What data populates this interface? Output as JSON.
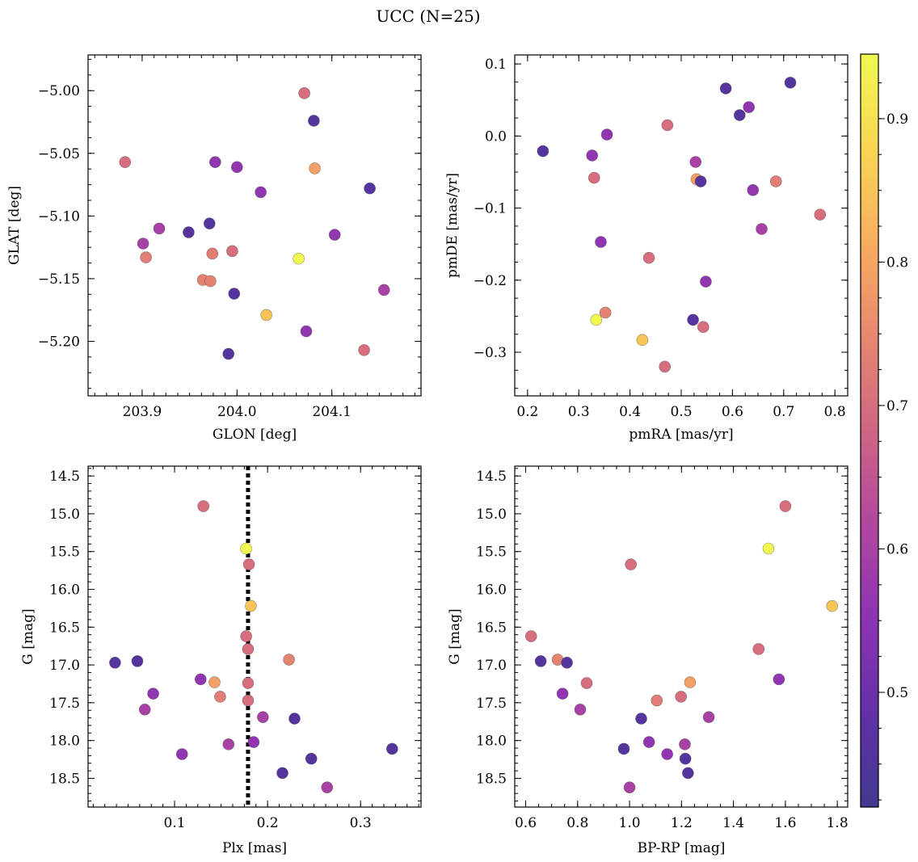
{
  "figure": {
    "title": "UCC (N=25)"
  },
  "colormap": {
    "name": "plasma",
    "stops": [
      "#41398f",
      "#6330a8",
      "#8c33b3",
      "#b1479f",
      "#cf6583",
      "#e8876f",
      "#f7ae5f",
      "#f8d653",
      "#f1f852"
    ],
    "range": [
      0.42,
      0.945
    ],
    "ticks": [
      0.5,
      0.6,
      0.7,
      0.8,
      0.9
    ],
    "tick_labels": [
      "0.5",
      "0.6",
      "0.7",
      "0.8",
      "0.9"
    ]
  },
  "chart_data": [
    {
      "type": "scatter",
      "id": "glon-glat",
      "xlabel": "GLON [deg]",
      "ylabel": "GLAT [deg]",
      "xlim": [
        203.843,
        204.194
      ],
      "ylim": [
        -5.2435,
        -4.9715
      ],
      "xticks": [
        203.9,
        204.0,
        204.1
      ],
      "xtick_labels": [
        "203.9",
        "204.0",
        "204.1"
      ],
      "yticks": [
        -5.2,
        -5.15,
        -5.1,
        -5.05,
        -5.0
      ],
      "ytick_labels": [
        "−5.20",
        "−5.15",
        "−5.10",
        "−5.05",
        "−5.00"
      ],
      "x": [
        204.071,
        204.081,
        203.882,
        203.977,
        204.0,
        204.082,
        204.025,
        204.14,
        203.971,
        203.918,
        203.949,
        204.103,
        203.901,
        203.904,
        203.974,
        203.995,
        204.065,
        203.964,
        203.972,
        203.997,
        204.155,
        204.031,
        204.073,
        204.134,
        203.991
      ],
      "y": [
        -5.002,
        -5.024,
        -5.057,
        -5.057,
        -5.061,
        -5.062,
        -5.081,
        -5.078,
        -5.106,
        -5.11,
        -5.113,
        -5.115,
        -5.122,
        -5.133,
        -5.13,
        -5.128,
        -5.134,
        -5.151,
        -5.152,
        -5.162,
        -5.159,
        -5.179,
        -5.192,
        -5.207,
        -5.21
      ],
      "c": [
        0.7,
        0.46,
        0.7,
        0.56,
        0.56,
        0.79,
        0.56,
        0.46,
        0.46,
        0.6,
        0.46,
        0.56,
        0.6,
        0.73,
        0.73,
        0.7,
        0.945,
        0.74,
        0.74,
        0.46,
        0.6,
        0.85,
        0.56,
        0.7,
        0.46
      ]
    },
    {
      "type": "scatter",
      "id": "pmra-pmde",
      "xlabel": "pmRA [mas/yr]",
      "ylabel": "pmDE [mas/yr]",
      "xlim": [
        0.175,
        0.825
      ],
      "ylim": [
        -0.3605,
        0.1125
      ],
      "xticks": [
        0.2,
        0.3,
        0.4,
        0.5,
        0.6,
        0.7,
        0.8
      ],
      "xtick_labels": [
        "0.2",
        "0.3",
        "0.4",
        "0.5",
        "0.6",
        "0.7",
        "0.8"
      ],
      "yticks": [
        -0.3,
        -0.2,
        -0.1,
        0.0,
        0.1
      ],
      "ytick_labels": [
        "−0.3",
        "−0.2",
        "−0.1",
        "0.0",
        "0.1"
      ],
      "x": [
        0.713,
        0.587,
        0.632,
        0.614,
        0.473,
        0.355,
        0.23,
        0.326,
        0.528,
        0.33,
        0.53,
        0.538,
        0.685,
        0.64,
        0.771,
        0.657,
        0.437,
        0.343,
        0.548,
        0.352,
        0.334,
        0.523,
        0.424,
        0.543,
        0.468
      ],
      "y": [
        0.074,
        0.066,
        0.04,
        0.029,
        0.015,
        0.002,
        -0.021,
        -0.027,
        -0.036,
        -0.058,
        -0.06,
        -0.063,
        -0.063,
        -0.075,
        -0.109,
        -0.129,
        -0.169,
        -0.147,
        -0.202,
        -0.245,
        -0.255,
        -0.255,
        -0.283,
        -0.265,
        -0.32
      ],
      "c": [
        0.46,
        0.46,
        0.56,
        0.46,
        0.7,
        0.56,
        0.46,
        0.56,
        0.6,
        0.7,
        0.79,
        0.46,
        0.73,
        0.56,
        0.7,
        0.6,
        0.7,
        0.56,
        0.56,
        0.74,
        0.945,
        0.46,
        0.85,
        0.7,
        0.7
      ]
    },
    {
      "type": "scatter",
      "id": "plx-g",
      "xlabel": "Plx [mas]",
      "ylabel": "G [mag]",
      "xlim": [
        0.007,
        0.365
      ],
      "ylim": [
        18.88,
        14.37
      ],
      "inverted_y": true,
      "xticks": [
        0.1,
        0.2,
        0.3
      ],
      "xtick_labels": [
        "0.1",
        "0.2",
        "0.3"
      ],
      "yticks": [
        14.5,
        15.0,
        15.5,
        16.0,
        16.5,
        17.0,
        17.5,
        18.0,
        18.5
      ],
      "ytick_labels": [
        "14.5",
        "15.0",
        "15.5",
        "16.0",
        "16.5",
        "17.0",
        "17.5",
        "18.0",
        "18.5"
      ],
      "vline": 0.179,
      "x": [
        0.131,
        0.177,
        0.18,
        0.182,
        0.177,
        0.179,
        0.223,
        0.06,
        0.036,
        0.179,
        0.128,
        0.143,
        0.077,
        0.149,
        0.179,
        0.068,
        0.195,
        0.229,
        0.185,
        0.158,
        0.108,
        0.247,
        0.216,
        0.334,
        0.264
      ],
      "y": [
        14.9,
        15.46,
        15.67,
        16.22,
        16.62,
        16.79,
        16.93,
        16.95,
        16.97,
        17.24,
        17.19,
        17.23,
        17.38,
        17.42,
        17.47,
        17.59,
        17.69,
        17.71,
        18.02,
        18.05,
        18.18,
        18.24,
        18.43,
        18.11,
        18.62
      ],
      "c": [
        0.7,
        0.945,
        0.7,
        0.85,
        0.7,
        0.7,
        0.74,
        0.46,
        0.46,
        0.7,
        0.56,
        0.79,
        0.56,
        0.73,
        0.7,
        0.6,
        0.6,
        0.46,
        0.56,
        0.6,
        0.56,
        0.46,
        0.46,
        0.46,
        0.6
      ]
    },
    {
      "type": "scatter",
      "id": "bprp-g",
      "xlabel": "BP-RP [mag]",
      "ylabel": "G [mag]",
      "xlim": [
        0.558,
        1.84
      ],
      "ylim": [
        18.88,
        14.37
      ],
      "inverted_y": true,
      "xticks": [
        0.6,
        0.8,
        1.0,
        1.2,
        1.4,
        1.6,
        1.8
      ],
      "xtick_labels": [
        "0.6",
        "0.8",
        "1.0",
        "1.2",
        "1.4",
        "1.6",
        "1.8"
      ],
      "yticks": [
        14.5,
        15.0,
        15.5,
        16.0,
        16.5,
        17.0,
        17.5,
        18.0,
        18.5
      ],
      "ytick_labels": [
        "14.5",
        "15.0",
        "15.5",
        "16.0",
        "16.5",
        "17.0",
        "17.5",
        "18.0",
        "18.5"
      ],
      "x": [
        1.6,
        1.535,
        1.005,
        1.78,
        0.621,
        1.497,
        0.723,
        0.658,
        0.759,
        0.835,
        1.575,
        1.233,
        0.742,
        1.105,
        1.198,
        0.81,
        1.305,
        1.045,
        1.075,
        1.213,
        1.145,
        1.215,
        1.225,
        0.978,
        1.0
      ],
      "y": [
        14.9,
        15.46,
        15.67,
        16.22,
        16.62,
        16.79,
        16.93,
        16.95,
        16.97,
        17.24,
        17.19,
        17.23,
        17.38,
        17.47,
        17.42,
        17.59,
        17.69,
        17.71,
        18.02,
        18.05,
        18.18,
        18.24,
        18.43,
        18.11,
        18.62
      ],
      "c": [
        0.7,
        0.945,
        0.7,
        0.85,
        0.7,
        0.7,
        0.74,
        0.46,
        0.46,
        0.7,
        0.56,
        0.79,
        0.56,
        0.73,
        0.7,
        0.6,
        0.6,
        0.46,
        0.56,
        0.6,
        0.56,
        0.46,
        0.46,
        0.46,
        0.6
      ]
    }
  ]
}
